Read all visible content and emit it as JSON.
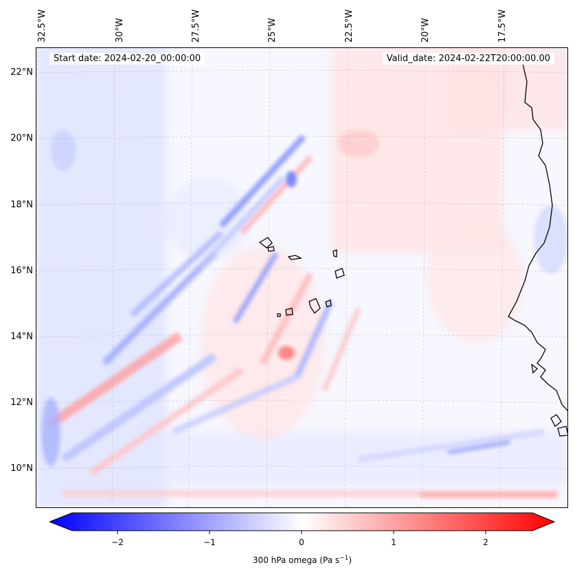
{
  "map": {
    "start_date": "Start date: 2024-02-20_00:00:00",
    "valid_date": "Valid_date: 2024-02-22T20:00:00.00",
    "longitude_labels": [
      "32.5°W",
      "30°W",
      "27.5°W",
      "25°W",
      "22.5°W",
      "20°W",
      "17.5°W"
    ],
    "latitude_labels": [
      "22°N",
      "20°N",
      "18°N",
      "16°N",
      "14°N",
      "12°N",
      "10°N"
    ],
    "colorbar": {
      "ticks": [
        "−2",
        "−1",
        "0",
        "1",
        "2"
      ],
      "title": "300 hPa omega (Pa s",
      "title_sup": "−1",
      "title_end": ")",
      "colors": {
        "negative": "#0000ff",
        "zero": "#ffffff",
        "positive": "#ff0000"
      }
    },
    "colors": {
      "coastline": "#000000",
      "gridline": "#b0b0b0"
    }
  }
}
